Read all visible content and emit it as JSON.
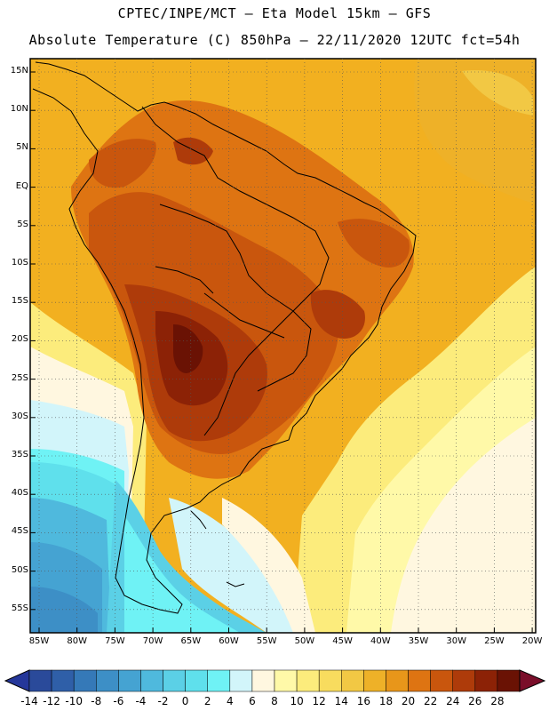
{
  "header": {
    "line1": "CPTEC/INPE/MCT —  Eta Model 15km — GFS",
    "line2": "Absolute Temperature (C) 850hPa — 22/11/2020 12UTC fct=54h"
  },
  "map": {
    "lat_labels": [
      "15N",
      "10N",
      "5N",
      "EQ",
      "5S",
      "10S",
      "15S",
      "20S",
      "25S",
      "30S",
      "35S",
      "40S",
      "45S",
      "50S",
      "55S"
    ],
    "lon_labels": [
      "85W",
      "80W",
      "75W",
      "70W",
      "65W",
      "60W",
      "55W",
      "50W",
      "45W",
      "40W",
      "35W",
      "30W",
      "25W",
      "20W"
    ]
  },
  "colorbar": {
    "labels": [
      "-14",
      "-12",
      "-10",
      "-8",
      "-6",
      "-4",
      "-2",
      "0",
      "2",
      "4",
      "6",
      "8",
      "10",
      "12",
      "14",
      "16",
      "18",
      "20",
      "22",
      "24",
      "26",
      "28"
    ],
    "colors": [
      "#2a4a9a",
      "#2f5fa8",
      "#3579b8",
      "#3d8fc6",
      "#45a3d2",
      "#4fb9dd",
      "#5bd0e6",
      "#5fe0ec",
      "#6ff2f5",
      "#d2f5fa",
      "#fff7e0",
      "#fff9a8",
      "#fcec7c",
      "#f8dc5e",
      "#f2c844",
      "#eeb128",
      "#e8961a",
      "#de7412",
      "#c9560d",
      "#ae3b0a",
      "#8c2206",
      "#6a1204"
    ],
    "under_color": "#25379a",
    "over_color": "#7a0e2a"
  }
}
